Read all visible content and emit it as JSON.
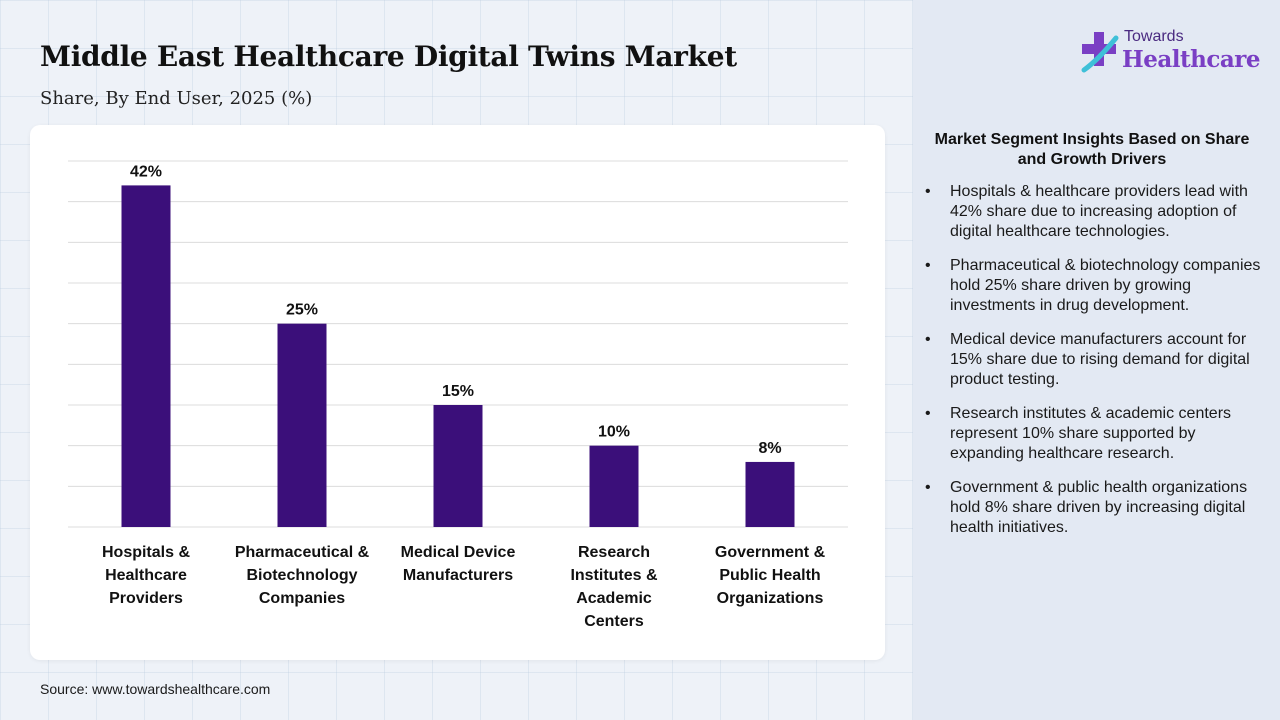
{
  "header": {
    "title": "Middle East Healthcare Digital Twins Market",
    "subtitle": "Share, By End User, 2025 (%)"
  },
  "logo": {
    "line1": "Towards",
    "line2": "Healthcare"
  },
  "colors": {
    "bar": "#3b0f7a",
    "gridline": "#dcdcdc",
    "logo_primary": "#7a3fc4",
    "logo_cross": "#3fc0d8"
  },
  "chart_data": {
    "type": "bar",
    "categories": [
      "Hospitals & Healthcare Providers",
      "Pharmaceutical & Biotechnology Companies",
      "Medical Device Manufacturers",
      "Research Institutes & Academic Centers",
      "Government & Public Health Organizations"
    ],
    "category_lines": [
      [
        "Hospitals &",
        "Healthcare",
        "Providers"
      ],
      [
        "Pharmaceutical &",
        "Biotechnology",
        "Companies"
      ],
      [
        "Medical Device",
        "Manufacturers"
      ],
      [
        "Research",
        "Institutes &",
        "Academic",
        "Centers"
      ],
      [
        "Government &",
        "Public Health",
        "Organizations"
      ]
    ],
    "values": [
      42,
      25,
      15,
      10,
      8
    ],
    "data_labels": [
      "42%",
      "25%",
      "15%",
      "10%",
      "8%"
    ],
    "ylim": [
      0,
      45
    ],
    "grid": true,
    "gridline_step": 5,
    "title": "Middle East Healthcare Digital Twins Market",
    "subtitle": "Share, By End User, 2025 (%)",
    "xlabel": "",
    "ylabel": ""
  },
  "insights": {
    "title": "Market Segment Insights Based on Share and Growth Drivers",
    "items": [
      "Hospitals & healthcare providers lead with 42% share due to increasing adoption of digital healthcare technologies.",
      "Pharmaceutical & biotechnology companies hold 25% share driven by growing investments in drug development.",
      "Medical device manufacturers account for 15% share due to rising demand for digital product testing.",
      "Research institutes & academic centers represent 10% share supported by expanding healthcare research.",
      "Government & public health organizations hold 8% share driven by increasing digital health initiatives."
    ]
  },
  "source": "Source: www.towardshealthcare.com"
}
